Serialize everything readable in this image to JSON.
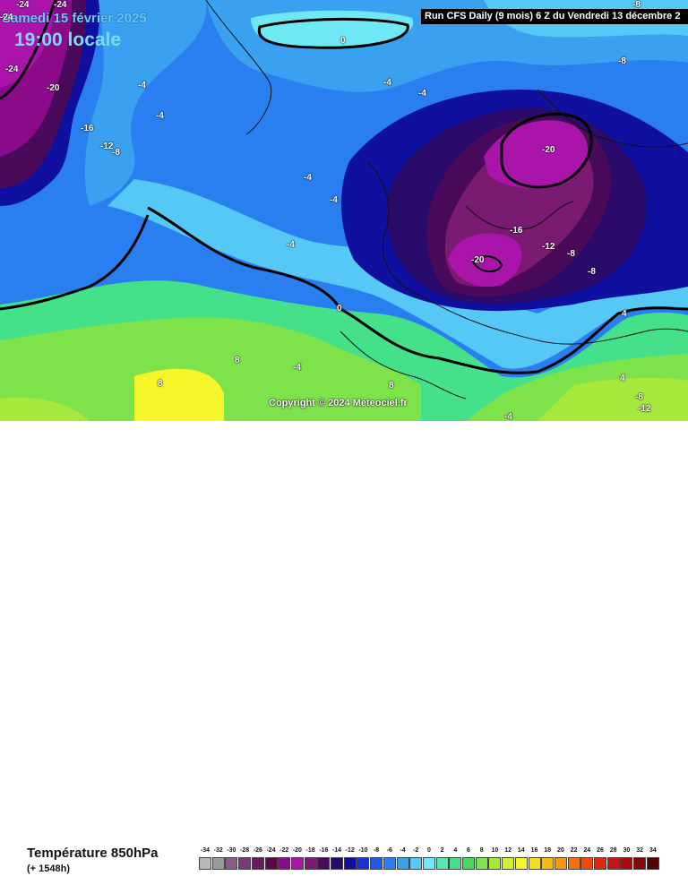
{
  "header": {
    "date": "Samedi 15 février 2025",
    "time": "19:00 locale",
    "run_info": "Run CFS Daily (9 mois) 6 Z du Vendredi 13 décembre 2"
  },
  "copyright": "Copyright © 2024 Meteociel.fr",
  "footer": {
    "variable": "Température 850hPa",
    "lead_time": "(+ 1548h)"
  },
  "scale": {
    "values": [
      -34,
      -32,
      -30,
      -28,
      -26,
      -24,
      -22,
      -20,
      -18,
      -16,
      -14,
      -12,
      -10,
      -8,
      -6,
      -4,
      -2,
      0,
      2,
      4,
      6,
      8,
      10,
      12,
      14,
      16,
      18,
      20,
      22,
      24,
      26,
      28,
      30,
      32,
      34
    ],
    "colors": [
      "#b8b8b8",
      "#9a9a9a",
      "#8a5a8a",
      "#7a3a7a",
      "#6a1a5a",
      "#5a0a4a",
      "#8a0a8a",
      "#aa14aa",
      "#7a1a70",
      "#4a0a5a",
      "#2a0a6a",
      "#1010a0",
      "#1a30d0",
      "#1f5ae6",
      "#2a7ff0",
      "#3aa0f0",
      "#55c8f5",
      "#6ee8f5",
      "#55e6b4",
      "#44e08a",
      "#46d95a",
      "#7ee24a",
      "#a6e83c",
      "#d2f032",
      "#f5f52a",
      "#f5dc1e",
      "#f5bb14",
      "#f59614",
      "#f5700f",
      "#f04a0f",
      "#e0280f",
      "#c81414",
      "#aa0a0a",
      "#800808",
      "#500404"
    ]
  },
  "isotherm_labels": [
    {
      "text": "-24"
    },
    {
      "text": "-24"
    },
    {
      "text": "-24"
    },
    {
      "text": "-24"
    },
    {
      "text": "-20"
    },
    {
      "text": "-16"
    },
    {
      "text": "-12"
    },
    {
      "text": "-8"
    },
    {
      "text": "-4"
    },
    {
      "text": "-4"
    },
    {
      "text": "0"
    },
    {
      "text": "-4"
    },
    {
      "text": "-4"
    },
    {
      "text": "-8"
    },
    {
      "text": "-8"
    },
    {
      "text": "-20"
    },
    {
      "text": "-16"
    },
    {
      "text": "-12"
    },
    {
      "text": "-8"
    },
    {
      "text": "-8"
    },
    {
      "text": "-20"
    },
    {
      "text": "-4"
    },
    {
      "text": "-4"
    },
    {
      "text": "-4"
    },
    {
      "text": "0"
    },
    {
      "text": "4"
    },
    {
      "text": "4"
    },
    {
      "text": "-4"
    },
    {
      "text": "8"
    },
    {
      "text": "8"
    },
    {
      "text": "8"
    },
    {
      "text": "-8"
    },
    {
      "text": "-12"
    },
    {
      "text": "-4"
    }
  ]
}
